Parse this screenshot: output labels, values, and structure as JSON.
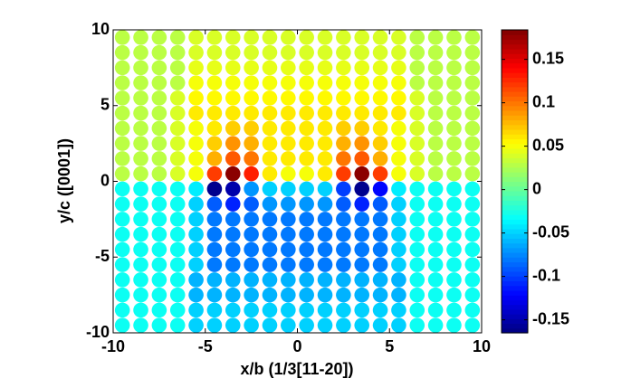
{
  "chart_data": {
    "type": "scatter",
    "colormap": "jet",
    "xlabel": "x/b (1/3[11-20])",
    "ylabel": "y/c ([0001])",
    "xlim": [
      -10,
      10
    ],
    "ylim": [
      -10,
      10
    ],
    "xticks": [
      -10,
      -5,
      0,
      5,
      10
    ],
    "yticks": [
      -10,
      -5,
      0,
      5,
      10
    ],
    "clim": [
      -0.165,
      0.184
    ],
    "cticks": [
      -0.15,
      -0.1,
      -0.05,
      0,
      0.05,
      0.1,
      0.15
    ],
    "x": [
      -9.5,
      -8.5,
      -7.5,
      -6.5,
      -5.5,
      -4.5,
      -3.5,
      -2.5,
      -1.5,
      -0.5,
      0.5,
      1.5,
      2.5,
      3.5,
      4.5,
      5.5,
      6.5,
      7.5,
      8.5,
      9.5
    ],
    "y": [
      9.5,
      8.5,
      7.5,
      6.5,
      5.5,
      4.5,
      3.5,
      2.5,
      1.5,
      0.5,
      -0.5,
      -1.5,
      -2.5,
      -3.5,
      -4.5,
      -5.5,
      -6.5,
      -7.5,
      -8.5,
      -9.5
    ],
    "values": [
      [
        0.03,
        0.03,
        0.03,
        0.03,
        0.04,
        0.04,
        0.04,
        0.04,
        0.04,
        0.04,
        0.04,
        0.04,
        0.04,
        0.04,
        0.04,
        0.04,
        0.03,
        0.03,
        0.03,
        0.03
      ],
      [
        0.03,
        0.03,
        0.03,
        0.03,
        0.04,
        0.04,
        0.04,
        0.04,
        0.04,
        0.04,
        0.04,
        0.04,
        0.04,
        0.04,
        0.04,
        0.04,
        0.03,
        0.03,
        0.03,
        0.03
      ],
      [
        0.03,
        0.03,
        0.03,
        0.03,
        0.045,
        0.045,
        0.045,
        0.045,
        0.045,
        0.045,
        0.045,
        0.045,
        0.045,
        0.045,
        0.045,
        0.045,
        0.03,
        0.03,
        0.03,
        0.03
      ],
      [
        0.03,
        0.03,
        0.03,
        0.03,
        0.05,
        0.05,
        0.05,
        0.05,
        0.05,
        0.05,
        0.05,
        0.05,
        0.05,
        0.05,
        0.05,
        0.05,
        0.03,
        0.03,
        0.03,
        0.03
      ],
      [
        0.03,
        0.03,
        0.03,
        0.04,
        0.055,
        0.055,
        0.055,
        0.055,
        0.055,
        0.055,
        0.055,
        0.055,
        0.055,
        0.055,
        0.055,
        0.055,
        0.04,
        0.03,
        0.03,
        0.03
      ],
      [
        0.03,
        0.03,
        0.03,
        0.04,
        0.06,
        0.06,
        0.06,
        0.06,
        0.06,
        0.06,
        0.06,
        0.06,
        0.06,
        0.06,
        0.06,
        0.06,
        0.04,
        0.03,
        0.03,
        0.03
      ],
      [
        0.03,
        0.03,
        0.03,
        0.04,
        0.05,
        0.06,
        0.07,
        0.07,
        0.06,
        0.06,
        0.06,
        0.06,
        0.07,
        0.07,
        0.06,
        0.05,
        0.04,
        0.03,
        0.03,
        0.03
      ],
      [
        0.03,
        0.03,
        0.03,
        0.04,
        0.05,
        0.07,
        0.09,
        0.08,
        0.06,
        0.06,
        0.06,
        0.06,
        0.08,
        0.09,
        0.07,
        0.05,
        0.04,
        0.03,
        0.03,
        0.03
      ],
      [
        0.03,
        0.03,
        0.03,
        0.04,
        0.05,
        0.08,
        0.11,
        0.1,
        0.06,
        0.06,
        0.06,
        0.06,
        0.1,
        0.11,
        0.08,
        0.05,
        0.04,
        0.03,
        0.03,
        0.03
      ],
      [
        0.03,
        0.03,
        0.03,
        0.04,
        0.05,
        0.12,
        0.18,
        0.13,
        0.06,
        0.05,
        0.05,
        0.06,
        0.12,
        0.18,
        0.12,
        0.05,
        0.04,
        0.03,
        0.03,
        0.03
      ],
      [
        -0.03,
        -0.03,
        -0.03,
        -0.03,
        -0.04,
        -0.16,
        -0.15,
        -0.07,
        -0.05,
        -0.05,
        -0.05,
        -0.05,
        -0.1,
        -0.16,
        -0.12,
        -0.04,
        -0.03,
        -0.03,
        -0.03,
        -0.03
      ],
      [
        -0.03,
        -0.03,
        -0.03,
        -0.03,
        -0.05,
        -0.09,
        -0.11,
        -0.09,
        -0.07,
        -0.07,
        -0.07,
        -0.07,
        -0.09,
        -0.11,
        -0.09,
        -0.05,
        -0.03,
        -0.03,
        -0.03,
        -0.03
      ],
      [
        -0.03,
        -0.03,
        -0.03,
        -0.03,
        -0.05,
        -0.08,
        -0.08,
        -0.08,
        -0.08,
        -0.08,
        -0.08,
        -0.08,
        -0.08,
        -0.08,
        -0.08,
        -0.05,
        -0.03,
        -0.03,
        -0.03,
        -0.03
      ],
      [
        -0.03,
        -0.03,
        -0.03,
        -0.03,
        -0.05,
        -0.08,
        -0.08,
        -0.08,
        -0.08,
        -0.08,
        -0.08,
        -0.08,
        -0.08,
        -0.08,
        -0.08,
        -0.05,
        -0.03,
        -0.03,
        -0.03,
        -0.03
      ],
      [
        -0.03,
        -0.03,
        -0.03,
        -0.03,
        -0.05,
        -0.08,
        -0.08,
        -0.08,
        -0.08,
        -0.08,
        -0.08,
        -0.08,
        -0.08,
        -0.08,
        -0.08,
        -0.05,
        -0.03,
        -0.03,
        -0.03,
        -0.03
      ],
      [
        -0.03,
        -0.03,
        -0.03,
        -0.03,
        -0.05,
        -0.08,
        -0.08,
        -0.08,
        -0.08,
        -0.08,
        -0.08,
        -0.08,
        -0.08,
        -0.08,
        -0.08,
        -0.05,
        -0.03,
        -0.03,
        -0.03,
        -0.03
      ],
      [
        -0.03,
        -0.03,
        -0.03,
        -0.03,
        -0.06,
        -0.06,
        -0.06,
        -0.06,
        -0.06,
        -0.06,
        -0.06,
        -0.06,
        -0.06,
        -0.06,
        -0.06,
        -0.06,
        -0.03,
        -0.03,
        -0.03,
        -0.03
      ],
      [
        -0.03,
        -0.03,
        -0.03,
        -0.03,
        -0.06,
        -0.06,
        -0.06,
        -0.06,
        -0.06,
        -0.06,
        -0.06,
        -0.06,
        -0.06,
        -0.06,
        -0.06,
        -0.06,
        -0.03,
        -0.03,
        -0.03,
        -0.03
      ],
      [
        -0.03,
        -0.03,
        -0.03,
        -0.03,
        -0.05,
        -0.05,
        -0.05,
        -0.05,
        -0.05,
        -0.05,
        -0.05,
        -0.05,
        -0.05,
        -0.05,
        -0.05,
        -0.05,
        -0.03,
        -0.03,
        -0.03,
        -0.03
      ],
      [
        -0.03,
        -0.03,
        -0.03,
        -0.03,
        -0.05,
        -0.05,
        -0.05,
        -0.05,
        -0.05,
        -0.05,
        -0.05,
        -0.05,
        -0.05,
        -0.05,
        -0.05,
        -0.05,
        -0.03,
        -0.03,
        -0.03,
        -0.03
      ]
    ]
  }
}
